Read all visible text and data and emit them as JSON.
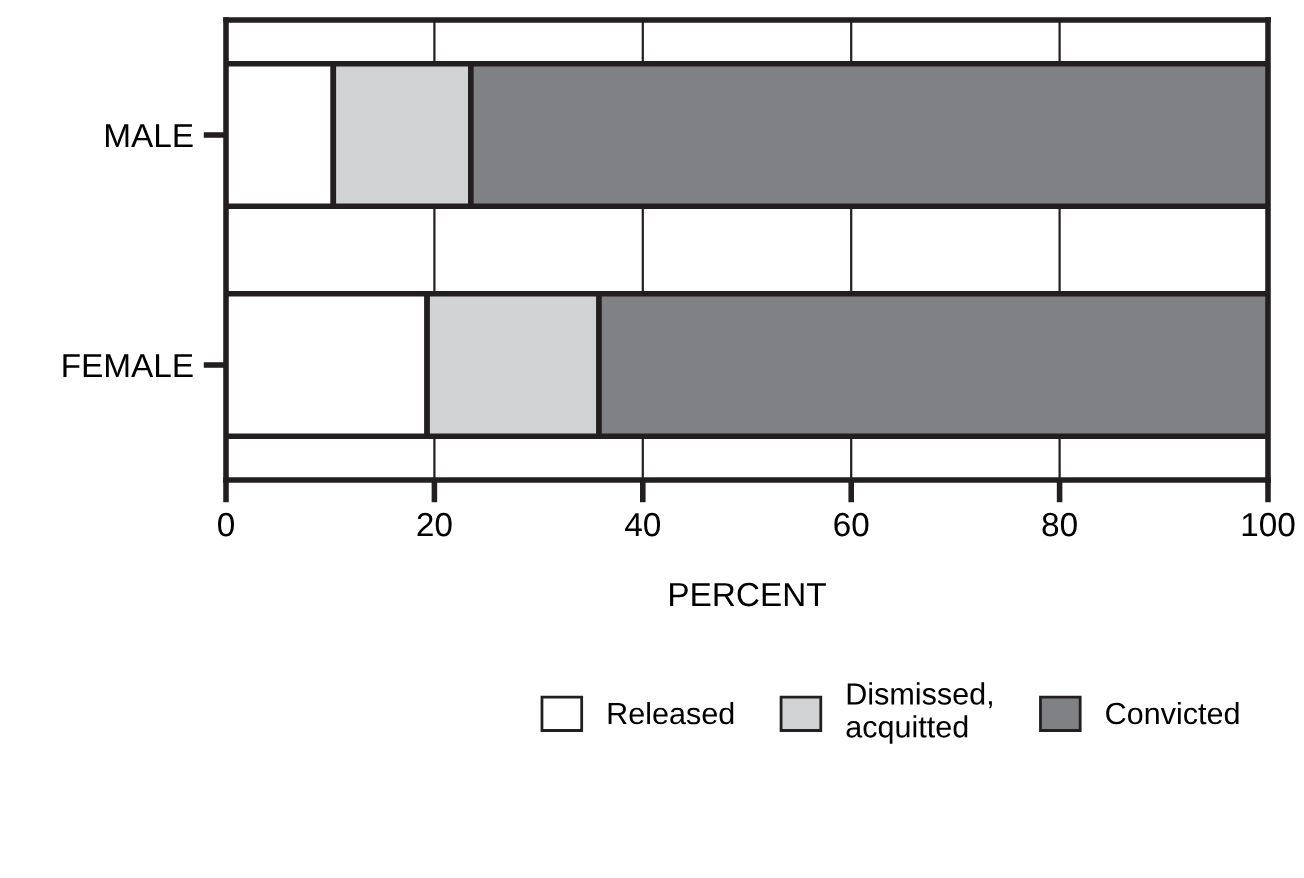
{
  "chart_data": {
    "type": "bar",
    "orientation": "horizontal",
    "stacked": true,
    "xlabel": "PERCENT",
    "categories": [
      "MALE",
      "FEMALE"
    ],
    "series": [
      {
        "name": "Released",
        "color": "#ffffff",
        "values": [
          10.3,
          19.3
        ]
      },
      {
        "name": "Dismissed,\nacquitted",
        "color": "#d1d2d4",
        "values": [
          13.2,
          16.5
        ]
      },
      {
        "name": "Convicted",
        "color": "#808184",
        "values": [
          76.5,
          64.2
        ]
      }
    ],
    "xlim": [
      0,
      100
    ],
    "xticks": [
      0,
      20,
      40,
      60,
      80,
      100
    ],
    "grid": "x",
    "legend": "bottom right"
  }
}
